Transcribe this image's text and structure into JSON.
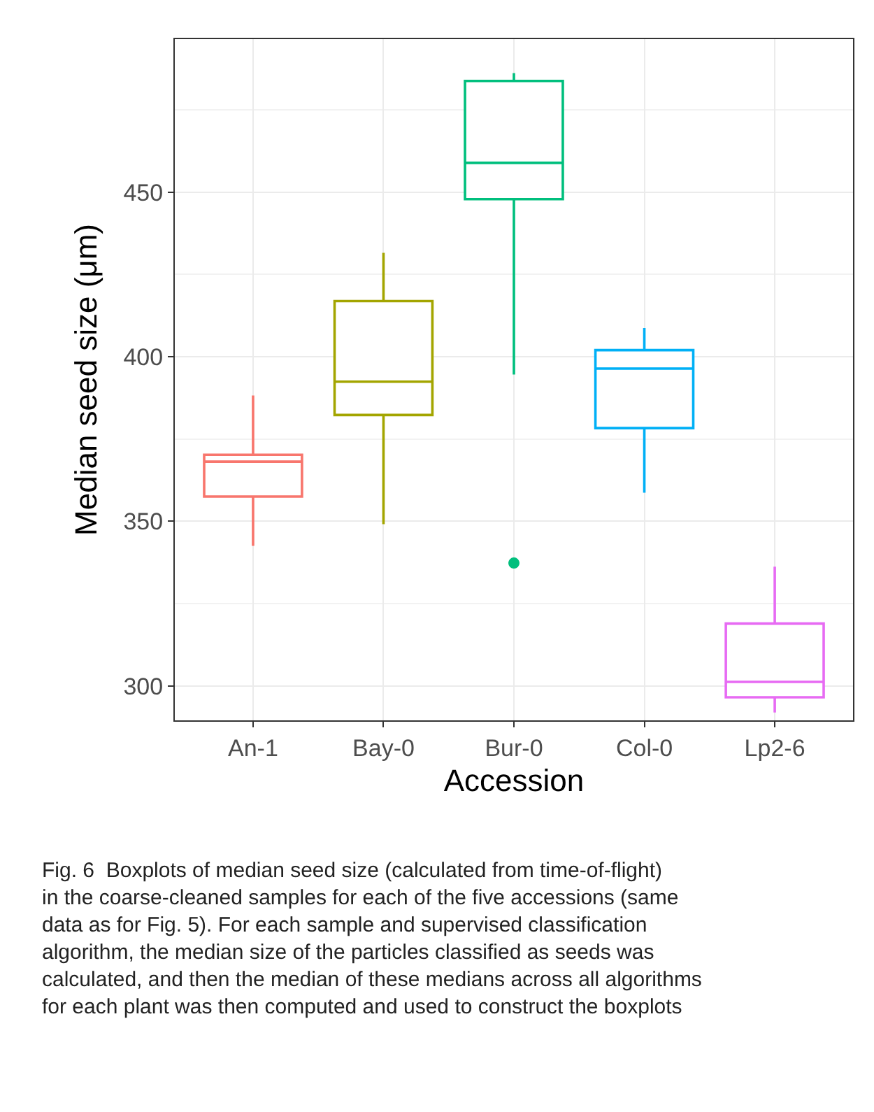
{
  "chart_data": {
    "type": "box",
    "categories": [
      "An-1",
      "Bay-0",
      "Bur-0",
      "Col-0",
      "Lp2-6"
    ],
    "colors": [
      "#f8766d",
      "#a3a500",
      "#00bf7d",
      "#00b0f6",
      "#e76bf3"
    ],
    "boxes": [
      {
        "low": 342.5,
        "q1": 357.5,
        "median": 368.1,
        "q3": 370.2,
        "high": 388.2
      },
      {
        "low": 349.1,
        "q1": 382.3,
        "median": 392.4,
        "q3": 416.9,
        "high": 431.6
      },
      {
        "low": 394.6,
        "q1": 447.9,
        "median": 458.9,
        "q3": 483.8,
        "high": 486.2,
        "outliers": [
          337.3
        ]
      },
      {
        "low": 358.7,
        "q1": 378.3,
        "median": 396.4,
        "q3": 402.0,
        "high": 408.7
      },
      {
        "low": 291.9,
        "q1": 296.5,
        "median": 301.2,
        "q3": 318.9,
        "high": 336.2
      }
    ],
    "xlabel": "Accession",
    "ylabel": "Median seed size (μm)",
    "ylim": [
      289.5,
      496.5
    ],
    "yticks": [
      300,
      350,
      400,
      450
    ],
    "grid": true,
    "annotations": [
      "Fig. 6  Boxplots of median seed size (calculated from time-of-flight) in the coarse-cleaned samples for each of the five accessions (same data as for Fig. 5). For each sample and supervised classification algorithm, the median size of the particles classified as seeds was calculated, and then the median of these medians across all algorithms for each plant was then computed and used to construct the boxplots"
    ]
  }
}
